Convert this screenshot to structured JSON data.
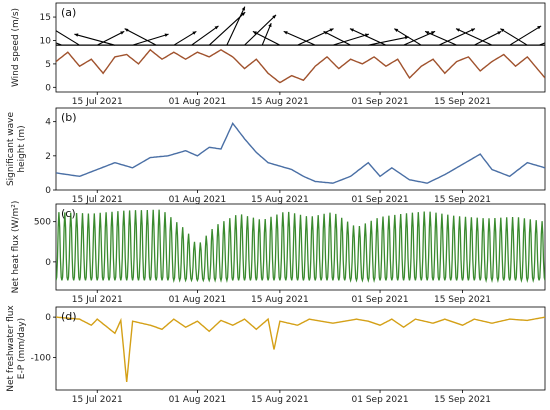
{
  "x_tick_labels": [
    "15 Jul 2021",
    "01 Aug 2021",
    "15 Aug 2021",
    "01 Sep 2021",
    "15 Sep 2021"
  ],
  "chart_data": [
    {
      "panel": "(a)",
      "type": "line",
      "ylabel": "Wind speed (m/s)",
      "ylim": [
        -1,
        18
      ],
      "yticks": [
        0,
        5,
        10,
        15
      ],
      "xlim": [
        "2021-07-08",
        "2021-09-29"
      ],
      "x_ticks": [
        "2021-07-15",
        "2021-08-01",
        "2021-08-15",
        "2021-09-01",
        "2021-09-15"
      ],
      "series": [
        {
          "color": "#a0522d",
          "points": [
            [
              "2021-07-08",
              5.5
            ],
            [
              "2021-07-10",
              7.5
            ],
            [
              "2021-07-12",
              4.5
            ],
            [
              "2021-07-14",
              6
            ],
            [
              "2021-07-16",
              3
            ],
            [
              "2021-07-18",
              6.5
            ],
            [
              "2021-07-20",
              7
            ],
            [
              "2021-07-22",
              5
            ],
            [
              "2021-07-24",
              8
            ],
            [
              "2021-07-26",
              6
            ],
            [
              "2021-07-28",
              7.5
            ],
            [
              "2021-07-30",
              6
            ],
            [
              "2021-08-01",
              7.5
            ],
            [
              "2021-08-03",
              6.5
            ],
            [
              "2021-08-05",
              8
            ],
            [
              "2021-08-07",
              6.5
            ],
            [
              "2021-08-09",
              4
            ],
            [
              "2021-08-11",
              6
            ],
            [
              "2021-08-13",
              3
            ],
            [
              "2021-08-15",
              1
            ],
            [
              "2021-08-17",
              2.5
            ],
            [
              "2021-08-19",
              1.5
            ],
            [
              "2021-08-21",
              4.5
            ],
            [
              "2021-08-23",
              6.5
            ],
            [
              "2021-08-25",
              4
            ],
            [
              "2021-08-27",
              6
            ],
            [
              "2021-08-29",
              5
            ],
            [
              "2021-08-31",
              6.5
            ],
            [
              "2021-09-02",
              4.5
            ],
            [
              "2021-09-04",
              6
            ],
            [
              "2021-09-06",
              2
            ],
            [
              "2021-09-08",
              4.5
            ],
            [
              "2021-09-10",
              6
            ],
            [
              "2021-09-12",
              3
            ],
            [
              "2021-09-14",
              5.5
            ],
            [
              "2021-09-16",
              6.5
            ],
            [
              "2021-09-18",
              3.5
            ],
            [
              "2021-09-20",
              5.5
            ],
            [
              "2021-09-22",
              7
            ],
            [
              "2021-09-24",
              4.5
            ],
            [
              "2021-09-26",
              6.5
            ],
            [
              "2021-09-29",
              2
            ]
          ]
        }
      ],
      "quiver": {
        "color": "#000000",
        "baseline": 9,
        "arrows": [
          [
            "2021-07-09",
            -40,
            25
          ],
          [
            "2021-07-12",
            -35,
            35
          ],
          [
            "2021-07-15",
            30,
            25
          ],
          [
            "2021-07-18",
            -45,
            20
          ],
          [
            "2021-07-21",
            40,
            20
          ],
          [
            "2021-07-25",
            -35,
            30
          ],
          [
            "2021-07-28",
            25,
            25
          ],
          [
            "2021-07-31",
            30,
            35
          ],
          [
            "2021-08-03",
            40,
            60
          ],
          [
            "2021-08-06",
            20,
            70
          ],
          [
            "2021-08-09",
            35,
            55
          ],
          [
            "2021-08-12",
            10,
            40
          ],
          [
            "2021-08-15",
            -30,
            25
          ],
          [
            "2021-08-18",
            40,
            30
          ],
          [
            "2021-08-21",
            -35,
            25
          ],
          [
            "2021-08-24",
            40,
            20
          ],
          [
            "2021-08-27",
            -30,
            25
          ],
          [
            "2021-08-30",
            45,
            15
          ],
          [
            "2021-09-02",
            -40,
            30
          ],
          [
            "2021-09-05",
            35,
            25
          ],
          [
            "2021-09-08",
            -30,
            30
          ],
          [
            "2021-09-11",
            40,
            30
          ],
          [
            "2021-09-14",
            -35,
            25
          ],
          [
            "2021-09-17",
            30,
            25
          ],
          [
            "2021-09-20",
            -40,
            30
          ],
          [
            "2021-09-23",
            35,
            35
          ],
          [
            "2021-09-26",
            -30,
            30
          ],
          [
            "2021-09-28",
            40,
            25
          ]
        ]
      }
    },
    {
      "panel": "(b)",
      "type": "line",
      "ylabel": "Significant wave height (m)",
      "ylim": [
        0,
        4.8
      ],
      "yticks": [
        0,
        2,
        4
      ],
      "xlim": [
        "2021-07-08",
        "2021-09-29"
      ],
      "x_ticks": [
        "2021-07-15",
        "2021-08-01",
        "2021-08-15",
        "2021-09-01",
        "2021-09-15"
      ],
      "series": [
        {
          "color": "#4a6fa5",
          "points": [
            [
              "2021-07-08",
              1.0
            ],
            [
              "2021-07-12",
              0.8
            ],
            [
              "2021-07-15",
              1.2
            ],
            [
              "2021-07-18",
              1.6
            ],
            [
              "2021-07-21",
              1.3
            ],
            [
              "2021-07-24",
              1.9
            ],
            [
              "2021-07-27",
              2.0
            ],
            [
              "2021-07-30",
              2.3
            ],
            [
              "2021-08-01",
              2.0
            ],
            [
              "2021-08-03",
              2.5
            ],
            [
              "2021-08-05",
              2.4
            ],
            [
              "2021-08-07",
              3.9
            ],
            [
              "2021-08-09",
              3.0
            ],
            [
              "2021-08-11",
              2.2
            ],
            [
              "2021-08-13",
              1.6
            ],
            [
              "2021-08-15",
              1.4
            ],
            [
              "2021-08-17",
              1.2
            ],
            [
              "2021-08-19",
              0.8
            ],
            [
              "2021-08-21",
              0.5
            ],
            [
              "2021-08-24",
              0.4
            ],
            [
              "2021-08-27",
              0.8
            ],
            [
              "2021-08-30",
              1.6
            ],
            [
              "2021-09-01",
              0.8
            ],
            [
              "2021-09-03",
              1.3
            ],
            [
              "2021-09-06",
              0.6
            ],
            [
              "2021-09-09",
              0.4
            ],
            [
              "2021-09-12",
              0.9
            ],
            [
              "2021-09-15",
              1.5
            ],
            [
              "2021-09-18",
              2.1
            ],
            [
              "2021-09-20",
              1.2
            ],
            [
              "2021-09-23",
              0.8
            ],
            [
              "2021-09-26",
              1.6
            ],
            [
              "2021-09-29",
              1.3
            ]
          ]
        }
      ]
    },
    {
      "panel": "(c)",
      "type": "line",
      "ylabel": "Net heat flux (W/m²)",
      "ylim": [
        -350,
        720
      ],
      "yticks": [
        0,
        500
      ],
      "xlim": [
        "2021-07-08",
        "2021-09-29"
      ],
      "x_ticks": [
        "2021-07-15",
        "2021-08-01",
        "2021-08-15",
        "2021-09-01",
        "2021-09-15"
      ],
      "series": [
        {
          "color": "#3a8a2e",
          "diurnal": true,
          "min": -230,
          "daily_max": [
            [
              "2021-07-08",
              620
            ],
            [
              "2021-07-14",
              600
            ],
            [
              "2021-07-20",
              640
            ],
            [
              "2021-07-26",
              650
            ],
            [
              "2021-07-30",
              400
            ],
            [
              "2021-08-01",
              200
            ],
            [
              "2021-08-04",
              450
            ],
            [
              "2021-08-08",
              600
            ],
            [
              "2021-08-12",
              520
            ],
            [
              "2021-08-16",
              630
            ],
            [
              "2021-08-20",
              560
            ],
            [
              "2021-08-24",
              620
            ],
            [
              "2021-08-28",
              430
            ],
            [
              "2021-09-01",
              560
            ],
            [
              "2021-09-05",
              600
            ],
            [
              "2021-09-09",
              630
            ],
            [
              "2021-09-14",
              570
            ],
            [
              "2021-09-19",
              540
            ],
            [
              "2021-09-24",
              560
            ],
            [
              "2021-09-29",
              500
            ]
          ]
        }
      ]
    },
    {
      "panel": "(d)",
      "type": "line",
      "ylabel": "Net freshwater flux E-P (mm/day)",
      "ylim": [
        -180,
        25
      ],
      "yticks": [
        -100,
        0
      ],
      "xlim": [
        "2021-07-08",
        "2021-09-29"
      ],
      "x_ticks": [
        "2021-07-15",
        "2021-08-01",
        "2021-08-15",
        "2021-09-01",
        "2021-09-15"
      ],
      "series": [
        {
          "color": "#d4a017",
          "points": [
            [
              "2021-07-08",
              0
            ],
            [
              "2021-07-12",
              -5
            ],
            [
              "2021-07-14",
              -20
            ],
            [
              "2021-07-15",
              -5
            ],
            [
              "2021-07-18",
              -40
            ],
            [
              "2021-07-19",
              -8
            ],
            [
              "2021-07-20",
              -160
            ],
            [
              "2021-07-21",
              -10
            ],
            [
              "2021-07-24",
              -20
            ],
            [
              "2021-07-26",
              -30
            ],
            [
              "2021-07-28",
              -5
            ],
            [
              "2021-07-30",
              -25
            ],
            [
              "2021-08-01",
              -10
            ],
            [
              "2021-08-03",
              -35
            ],
            [
              "2021-08-05",
              -8
            ],
            [
              "2021-08-07",
              -20
            ],
            [
              "2021-08-09",
              -5
            ],
            [
              "2021-08-11",
              -30
            ],
            [
              "2021-08-13",
              -5
            ],
            [
              "2021-08-14",
              -80
            ],
            [
              "2021-08-15",
              -10
            ],
            [
              "2021-08-18",
              -20
            ],
            [
              "2021-08-20",
              -5
            ],
            [
              "2021-08-24",
              -15
            ],
            [
              "2021-08-28",
              -5
            ],
            [
              "2021-08-30",
              -10
            ],
            [
              "2021-09-01",
              -20
            ],
            [
              "2021-09-03",
              -5
            ],
            [
              "2021-09-05",
              -25
            ],
            [
              "2021-09-07",
              -5
            ],
            [
              "2021-09-10",
              -15
            ],
            [
              "2021-09-12",
              -5
            ],
            [
              "2021-09-15",
              -20
            ],
            [
              "2021-09-17",
              -5
            ],
            [
              "2021-09-20",
              -15
            ],
            [
              "2021-09-23",
              -5
            ],
            [
              "2021-09-26",
              -8
            ],
            [
              "2021-09-29",
              0
            ]
          ]
        }
      ]
    }
  ]
}
